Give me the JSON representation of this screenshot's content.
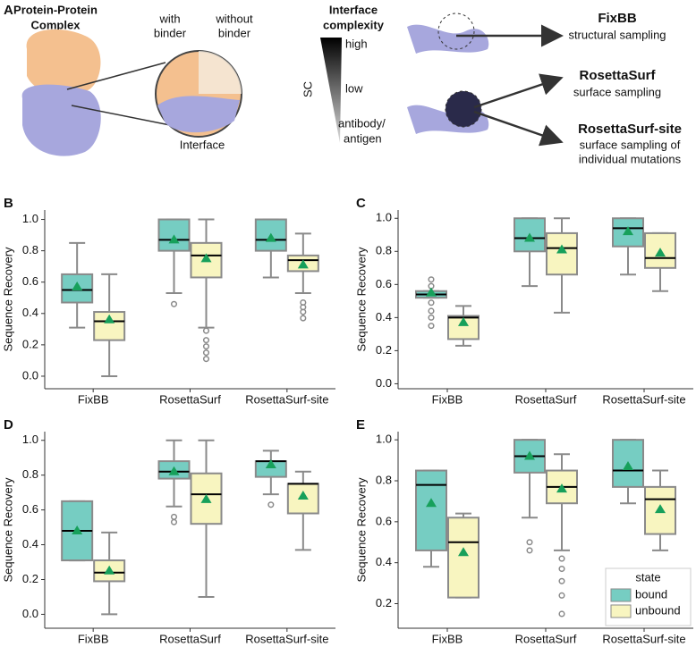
{
  "panel_a": {
    "letter": "A",
    "complex_label": [
      "Protein-Protein",
      "Complex"
    ],
    "with_binder": [
      "with",
      "binder"
    ],
    "without_binder": [
      "without",
      "binder"
    ],
    "interface_label": "Interface",
    "complexity_title": [
      "Interface",
      "complexity"
    ],
    "complexity_high": "high",
    "complexity_low": "low",
    "complexity_axis": "SC",
    "complexity_lowest": [
      "antibody/",
      "antigen"
    ],
    "methods": [
      {
        "name": "FixBB",
        "desc": [
          "structural sampling"
        ]
      },
      {
        "name": "RosettaSurf",
        "desc": [
          "surface sampling"
        ]
      },
      {
        "name": "RosettaSurf-site",
        "desc": [
          "surface sampling of",
          "individual mutations"
        ]
      }
    ]
  },
  "chart_data": [
    {
      "type": "box",
      "panel": "B",
      "ylabel": "Sequence Recovery",
      "categories": [
        "FixBB",
        "RosettaSurf",
        "RosettaSurf-site"
      ],
      "ylim": [
        -0.08,
        1.06
      ],
      "yticks": [
        {
          "value": 0,
          "label": "0.0"
        },
        0.2,
        0.4,
        0.6,
        0.8,
        {
          "value": 1,
          "label": "1.0"
        }
      ],
      "series": [
        {
          "color": "#76cdc2",
          "stats": [
            {
              "whisker_low": 0.31,
              "q1": 0.47,
              "median": 0.55,
              "q3": 0.65,
              "whisker_high": 0.85,
              "mean": 0.57,
              "outliers": []
            },
            {
              "whisker_low": 0.53,
              "q1": 0.8,
              "median": 0.87,
              "q3": 1.0,
              "whisker_high": 1.0,
              "mean": 0.87,
              "outliers": [
                0.46
              ]
            },
            {
              "whisker_low": 0.63,
              "q1": 0.8,
              "median": 0.87,
              "q3": 1.0,
              "whisker_high": 1.0,
              "mean": 0.88,
              "outliers": []
            }
          ]
        },
        {
          "color": "#f8f5c0",
          "stats": [
            {
              "whisker_low": 0.0,
              "q1": 0.23,
              "median": 0.35,
              "q3": 0.41,
              "whisker_high": 0.65,
              "mean": 0.36,
              "outliers": []
            },
            {
              "whisker_low": 0.31,
              "q1": 0.63,
              "median": 0.77,
              "q3": 0.85,
              "whisker_high": 1.0,
              "mean": 0.75,
              "outliers": [
                0.29,
                0.23,
                0.19,
                0.15,
                0.11
              ]
            },
            {
              "whisker_low": 0.53,
              "q1": 0.67,
              "median": 0.74,
              "q3": 0.77,
              "whisker_high": 0.91,
              "mean": 0.71,
              "outliers": [
                0.47,
                0.44,
                0.41,
                0.37
              ]
            }
          ]
        }
      ]
    },
    {
      "type": "box",
      "panel": "C",
      "ylabel": "Sequence Recovery",
      "categories": [
        "FixBB",
        "RosettaSurf",
        "RosettaSurf-site"
      ],
      "ylim": [
        -0.03,
        1.05
      ],
      "yticks": [
        {
          "value": 0,
          "label": "0.0"
        },
        0.2,
        0.4,
        0.6,
        0.8,
        {
          "value": 1,
          "label": "1.0"
        }
      ],
      "series": [
        {
          "color": "#76cdc2",
          "stats": [
            {
              "whisker_low": 0.52,
              "q1": 0.52,
              "median": 0.54,
              "q3": 0.56,
              "whisker_high": 0.56,
              "mean": 0.55,
              "outliers": [
                0.63,
                0.59,
                0.49,
                0.44,
                0.4,
                0.35
              ]
            },
            {
              "whisker_low": 0.59,
              "q1": 0.8,
              "median": 0.88,
              "q3": 1.0,
              "whisker_high": 1.0,
              "mean": 0.88,
              "outliers": []
            },
            {
              "whisker_low": 0.66,
              "q1": 0.83,
              "median": 0.94,
              "q3": 1.0,
              "whisker_high": 1.0,
              "mean": 0.92,
              "outliers": []
            }
          ]
        },
        {
          "color": "#f8f5c0",
          "stats": [
            {
              "whisker_low": 0.23,
              "q1": 0.27,
              "median": 0.4,
              "q3": 0.41,
              "whisker_high": 0.47,
              "mean": 0.37,
              "outliers": []
            },
            {
              "whisker_low": 0.43,
              "q1": 0.66,
              "median": 0.82,
              "q3": 0.91,
              "whisker_high": 1.0,
              "mean": 0.81,
              "outliers": []
            },
            {
              "whisker_low": 0.56,
              "q1": 0.7,
              "median": 0.76,
              "q3": 0.91,
              "whisker_high": 0.91,
              "mean": 0.79,
              "outliers": []
            }
          ]
        }
      ]
    },
    {
      "type": "box",
      "panel": "D",
      "ylabel": "Sequence Recovery",
      "categories": [
        "FixBB",
        "RosettaSurf",
        "RosettaSurf-site"
      ],
      "ylim": [
        -0.08,
        1.05
      ],
      "yticks": [
        {
          "value": 0,
          "label": "0.0"
        },
        0.2,
        0.4,
        0.6,
        0.8,
        {
          "value": 1,
          "label": "1.0"
        }
      ],
      "series": [
        {
          "color": "#76cdc2",
          "stats": [
            {
              "whisker_low": 0.31,
              "q1": 0.31,
              "median": 0.48,
              "q3": 0.65,
              "whisker_high": 0.65,
              "mean": 0.48,
              "outliers": []
            },
            {
              "whisker_low": 0.62,
              "q1": 0.78,
              "median": 0.82,
              "q3": 0.88,
              "whisker_high": 1.0,
              "mean": 0.82,
              "outliers": [
                0.56,
                0.53
              ]
            },
            {
              "whisker_low": 0.69,
              "q1": 0.79,
              "median": 0.88,
              "q3": 0.88,
              "whisker_high": 0.94,
              "mean": 0.86,
              "outliers": [
                0.63
              ]
            }
          ]
        },
        {
          "color": "#f8f5c0",
          "stats": [
            {
              "whisker_low": 0.0,
              "q1": 0.19,
              "median": 0.24,
              "q3": 0.31,
              "whisker_high": 0.47,
              "mean": 0.25,
              "outliers": []
            },
            {
              "whisker_low": 0.1,
              "q1": 0.52,
              "median": 0.69,
              "q3": 0.81,
              "whisker_high": 1.0,
              "mean": 0.66,
              "outliers": []
            },
            {
              "whisker_low": 0.37,
              "q1": 0.58,
              "median": 0.75,
              "q3": 0.75,
              "whisker_high": 0.82,
              "mean": 0.68,
              "outliers": []
            }
          ]
        }
      ]
    },
    {
      "type": "box",
      "panel": "E",
      "ylabel": "Sequence Recovery",
      "categories": [
        "FixBB",
        "RosettaSurf",
        "RosettaSurf-site"
      ],
      "ylim": [
        0.08,
        1.04
      ],
      "yticks": [
        0.2,
        0.4,
        0.6,
        0.8,
        {
          "value": 1,
          "label": "1.0"
        }
      ],
      "legend": "lower right",
      "legend_title": "state",
      "series": [
        {
          "name": "bound",
          "color": "#76cdc2",
          "stats": [
            {
              "whisker_low": 0.38,
              "q1": 0.46,
              "median": 0.78,
              "q3": 0.85,
              "whisker_high": 0.85,
              "mean": 0.69,
              "outliers": []
            },
            {
              "whisker_low": 0.62,
              "q1": 0.84,
              "median": 0.92,
              "q3": 1.0,
              "whisker_high": 1.0,
              "mean": 0.92,
              "outliers": [
                0.5,
                0.46
              ]
            },
            {
              "whisker_low": 0.69,
              "q1": 0.77,
              "median": 0.85,
              "q3": 1.0,
              "whisker_high": 1.0,
              "mean": 0.87,
              "outliers": []
            }
          ]
        },
        {
          "name": "unbound",
          "color": "#f8f5c0",
          "stats": [
            {
              "whisker_low": 0.23,
              "q1": 0.23,
              "median": 0.5,
              "q3": 0.62,
              "whisker_high": 0.64,
              "mean": 0.45,
              "outliers": []
            },
            {
              "whisker_low": 0.46,
              "q1": 0.69,
              "median": 0.77,
              "q3": 0.85,
              "whisker_high": 0.93,
              "mean": 0.76,
              "outliers": [
                0.42,
                0.37,
                0.31,
                0.24,
                0.15
              ]
            },
            {
              "whisker_low": 0.46,
              "q1": 0.54,
              "median": 0.71,
              "q3": 0.77,
              "whisker_high": 0.85,
              "mean": 0.66,
              "outliers": []
            }
          ]
        }
      ]
    }
  ]
}
